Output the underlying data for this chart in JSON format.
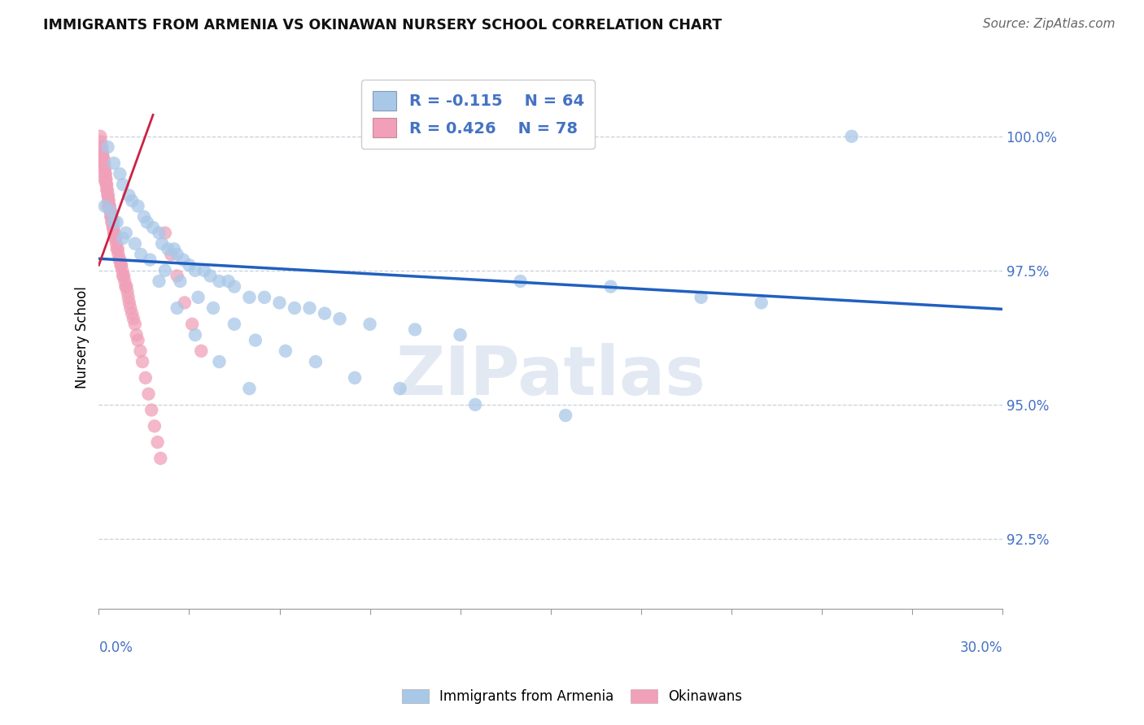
{
  "title": "IMMIGRANTS FROM ARMENIA VS OKINAWAN NURSERY SCHOOL CORRELATION CHART",
  "source": "Source: ZipAtlas.com",
  "ylabel": "Nursery School",
  "x_min": 0.0,
  "x_max": 30.0,
  "y_min": 91.2,
  "y_max": 101.3,
  "y_ticks": [
    92.5,
    95.0,
    97.5,
    100.0
  ],
  "y_tick_labels": [
    "92.5%",
    "95.0%",
    "97.5%",
    "100.0%"
  ],
  "legend_r_blue": "R = -0.115",
  "legend_n_blue": "N = 64",
  "legend_r_pink": "R = 0.426",
  "legend_n_pink": "N = 78",
  "blue_color": "#a8c8e8",
  "pink_color": "#f0a0b8",
  "trendline_blue_color": "#2060c0",
  "trendline_pink_color": "#cc2244",
  "grid_color": "#c8d0dc",
  "trend_blue_x0": 0.0,
  "trend_blue_y0": 97.72,
  "trend_blue_x1": 30.0,
  "trend_blue_y1": 96.78,
  "trend_pink_x0": 0.0,
  "trend_pink_y0": 97.6,
  "trend_pink_x1": 1.8,
  "trend_pink_y1": 100.4,
  "blue_x": [
    0.3,
    0.5,
    0.7,
    0.8,
    1.0,
    1.1,
    1.3,
    1.5,
    1.6,
    1.8,
    2.0,
    2.1,
    2.3,
    2.5,
    2.6,
    2.8,
    3.0,
    3.2,
    3.5,
    3.7,
    4.0,
    4.3,
    4.5,
    5.0,
    5.5,
    6.0,
    6.5,
    7.0,
    7.5,
    8.0,
    9.0,
    10.5,
    12.0,
    14.0,
    17.0,
    20.0,
    22.0,
    25.0,
    0.4,
    0.6,
    0.9,
    1.2,
    1.7,
    2.2,
    2.7,
    3.3,
    3.8,
    4.5,
    5.2,
    6.2,
    7.2,
    8.5,
    10.0,
    12.5,
    15.5,
    0.2,
    0.5,
    0.8,
    1.4,
    2.0,
    2.6,
    3.2,
    4.0,
    5.0
  ],
  "blue_y": [
    99.8,
    99.5,
    99.3,
    99.1,
    98.9,
    98.8,
    98.7,
    98.5,
    98.4,
    98.3,
    98.2,
    98.0,
    97.9,
    97.9,
    97.8,
    97.7,
    97.6,
    97.5,
    97.5,
    97.4,
    97.3,
    97.3,
    97.2,
    97.0,
    97.0,
    96.9,
    96.8,
    96.8,
    96.7,
    96.6,
    96.5,
    96.4,
    96.3,
    97.3,
    97.2,
    97.0,
    96.9,
    100.0,
    98.6,
    98.4,
    98.2,
    98.0,
    97.7,
    97.5,
    97.3,
    97.0,
    96.8,
    96.5,
    96.2,
    96.0,
    95.8,
    95.5,
    95.3,
    95.0,
    94.8,
    98.7,
    98.4,
    98.1,
    97.8,
    97.3,
    96.8,
    96.3,
    95.8,
    95.3
  ],
  "pink_x": [
    0.05,
    0.07,
    0.08,
    0.1,
    0.11,
    0.12,
    0.14,
    0.15,
    0.16,
    0.18,
    0.19,
    0.2,
    0.21,
    0.22,
    0.23,
    0.24,
    0.25,
    0.26,
    0.27,
    0.28,
    0.3,
    0.31,
    0.32,
    0.33,
    0.35,
    0.36,
    0.38,
    0.39,
    0.4,
    0.42,
    0.43,
    0.45,
    0.47,
    0.48,
    0.5,
    0.52,
    0.54,
    0.56,
    0.58,
    0.6,
    0.63,
    0.65,
    0.68,
    0.7,
    0.73,
    0.75,
    0.78,
    0.8,
    0.83,
    0.86,
    0.89,
    0.92,
    0.95,
    0.98,
    1.01,
    1.05,
    1.1,
    1.15,
    1.2,
    1.25,
    1.3,
    1.38,
    1.45,
    1.55,
    1.65,
    1.75,
    1.85,
    1.95,
    2.05,
    2.2,
    2.4,
    2.6,
    2.85,
    3.1,
    3.4,
    0.1,
    0.18,
    0.3
  ],
  "pink_y": [
    100.0,
    99.9,
    99.8,
    99.8,
    99.7,
    99.7,
    99.6,
    99.6,
    99.5,
    99.5,
    99.4,
    99.4,
    99.3,
    99.3,
    99.2,
    99.2,
    99.1,
    99.1,
    99.0,
    99.0,
    98.9,
    98.9,
    98.8,
    98.8,
    98.7,
    98.7,
    98.6,
    98.6,
    98.5,
    98.5,
    98.4,
    98.4,
    98.3,
    98.3,
    98.2,
    98.2,
    98.1,
    98.1,
    98.0,
    97.9,
    97.9,
    97.8,
    97.7,
    97.7,
    97.6,
    97.6,
    97.5,
    97.4,
    97.4,
    97.3,
    97.2,
    97.2,
    97.1,
    97.0,
    96.9,
    96.8,
    96.7,
    96.6,
    96.5,
    96.3,
    96.2,
    96.0,
    95.8,
    95.5,
    95.2,
    94.9,
    94.6,
    94.3,
    94.0,
    98.2,
    97.8,
    97.4,
    96.9,
    96.5,
    96.0,
    99.5,
    99.2,
    98.7
  ]
}
